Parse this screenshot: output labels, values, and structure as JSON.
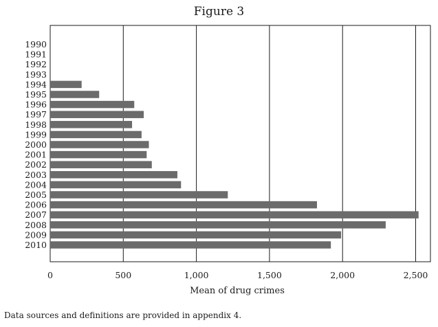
{
  "chart_data": {
    "type": "bar",
    "orientation": "horizontal",
    "title": "Figure 3",
    "xlabel": "Mean of drug crimes",
    "ylabel": "",
    "xlim": [
      0,
      2600
    ],
    "xticks": [
      0,
      500,
      1000,
      1500,
      2000,
      2500
    ],
    "xtick_labels": [
      "0",
      "500",
      "1,000",
      "1,500",
      "2,000",
      "2,500"
    ],
    "grid": "vertical",
    "categories": [
      "1990",
      "1991",
      "1992",
      "1993",
      "1994",
      "1995",
      "1996",
      "1997",
      "1998",
      "1999",
      "2000",
      "2001",
      "2002",
      "2003",
      "2004",
      "2005",
      "2006",
      "2007",
      "2008",
      "2009",
      "2010"
    ],
    "values": [
      0,
      0,
      0,
      0,
      215,
      335,
      575,
      640,
      560,
      625,
      675,
      660,
      695,
      870,
      895,
      1215,
      1825,
      2520,
      2295,
      1990,
      1920
    ],
    "bar_color": "#6b6b6b"
  },
  "footnote": "Data sources and definitions are provided in appendix 4."
}
